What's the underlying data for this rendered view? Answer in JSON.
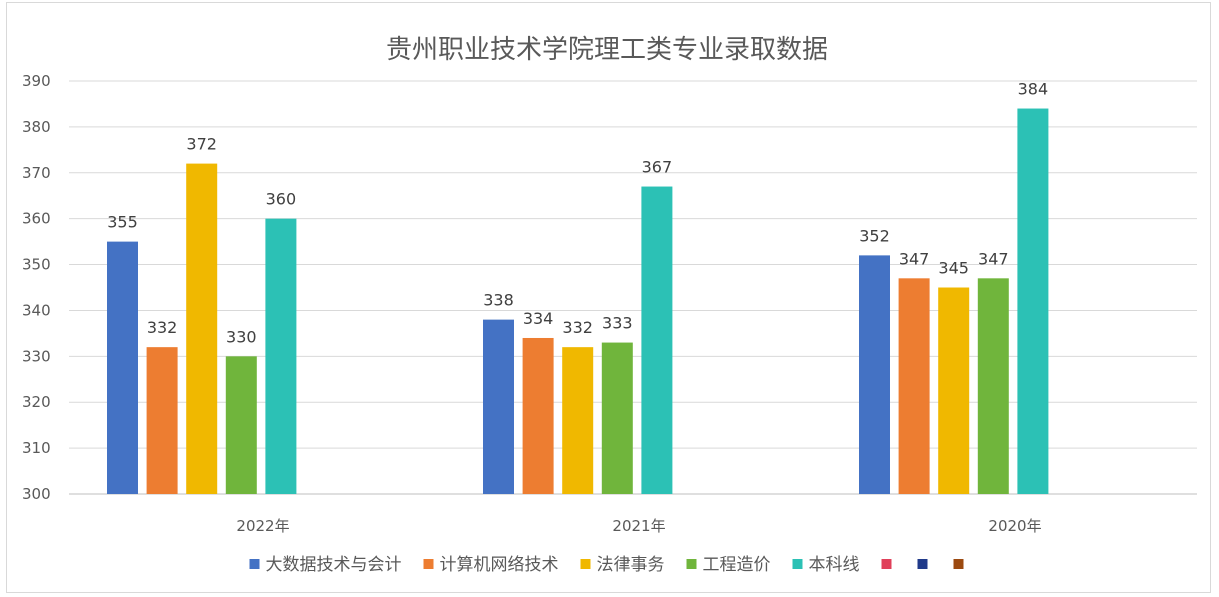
{
  "chart_data": {
    "type": "bar",
    "title": "贵州职业技术学院理工类专业录取数据",
    "xlabel": "",
    "ylabel": "",
    "categories": [
      "2022年",
      "2021年",
      "2020年"
    ],
    "ylim": [
      300,
      390
    ],
    "yticks": [
      300,
      310,
      320,
      330,
      340,
      350,
      360,
      370,
      380,
      390
    ],
    "grid": true,
    "legend_position": "bottom",
    "series": [
      {
        "name": "大数据技术与会计",
        "color": "#4472c4",
        "values": [
          355,
          338,
          352
        ]
      },
      {
        "name": "计算机网络技术",
        "color": "#ed7d31",
        "values": [
          332,
          334,
          347
        ]
      },
      {
        "name": "法律事务",
        "color": "#f0b800",
        "values": [
          372,
          332,
          345
        ]
      },
      {
        "name": "工程造价",
        "color": "#70b53c",
        "values": [
          330,
          333,
          347
        ]
      },
      {
        "name": "本科线",
        "color": "#2cc1b5",
        "values": [
          360,
          367,
          384
        ]
      }
    ],
    "extra_legend_markers": [
      {
        "color": "#e0405a"
      },
      {
        "color": "#203a8a"
      },
      {
        "color": "#9c4a10"
      }
    ]
  }
}
